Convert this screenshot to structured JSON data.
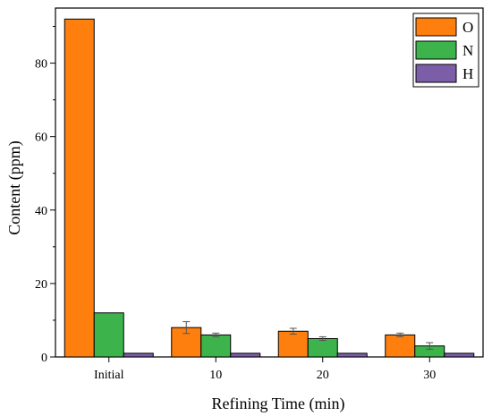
{
  "chart_data": {
    "type": "bar",
    "xlabel": "Refining Time (min)",
    "ylabel": "Content (ppm)",
    "ylim": [
      0,
      95
    ],
    "yticks": [
      0,
      20,
      40,
      60,
      80
    ],
    "categories": [
      "Initial",
      "10",
      "20",
      "30"
    ],
    "legend_position": "top-right",
    "series": [
      {
        "name": "O",
        "color": "#ff7f0e",
        "values": [
          92,
          8,
          7,
          6
        ],
        "errors": [
          0,
          1.6,
          0.8,
          0.5
        ]
      },
      {
        "name": "N",
        "color": "#3cb44b",
        "values": [
          12,
          6,
          5,
          3
        ],
        "errors": [
          0,
          0.5,
          0.5,
          0.9
        ]
      },
      {
        "name": "H",
        "color": "#7b5ea7",
        "values": [
          1,
          1,
          1,
          1
        ],
        "errors": [
          0,
          0,
          0,
          0
        ]
      }
    ]
  }
}
